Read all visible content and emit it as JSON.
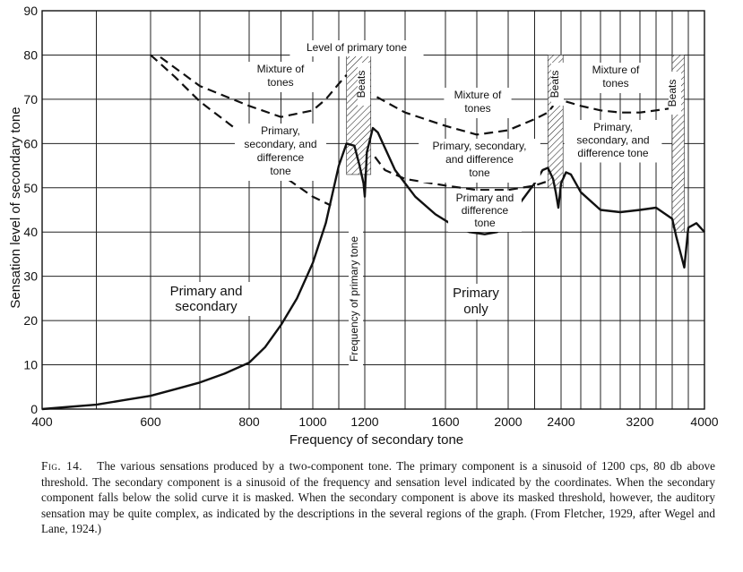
{
  "chart_data": {
    "type": "line",
    "title": "",
    "xlabel": "Frequency of secondary tone",
    "ylabel": "Sensation level of secondary tone",
    "xlim": [
      400,
      4000
    ],
    "ylim": [
      0,
      90
    ],
    "x_ticks": [
      {
        "value": 400,
        "label": "400"
      },
      {
        "value": 600,
        "label": "600"
      },
      {
        "value": 800,
        "label": "800"
      },
      {
        "value": 1000,
        "label": "1000"
      },
      {
        "value": 1200,
        "label": "1200"
      },
      {
        "value": 1600,
        "label": "1600"
      },
      {
        "value": 2000,
        "label": "2000"
      },
      {
        "value": 2400,
        "label": "2400"
      },
      {
        "value": 3200,
        "label": "3200"
      },
      {
        "value": 4000,
        "label": "4000"
      }
    ],
    "y_ticks": [
      0,
      10,
      20,
      30,
      40,
      50,
      60,
      70,
      80,
      90
    ],
    "x_gridlines": [
      400,
      500,
      600,
      700,
      800,
      900,
      1000,
      1100,
      1200,
      1400,
      1600,
      1800,
      2000,
      2200,
      2400,
      2600,
      2800,
      3000,
      3200,
      3400,
      3600,
      3800,
      4000
    ],
    "grid": true,
    "series": [
      {
        "style": "solid",
        "x": [
          400,
          450,
          500,
          550,
          600,
          650,
          700,
          750,
          800,
          850,
          900,
          950,
          1000,
          1050,
          1100,
          1130,
          1160,
          1180,
          1195,
          1200,
          1210,
          1240,
          1265,
          1300,
          1350,
          1450,
          1550,
          1650,
          1750,
          1850,
          1930,
          2000,
          2100,
          2200,
          2260,
          2300,
          2340,
          2360,
          2380,
          2400,
          2450,
          2500,
          2600,
          2800,
          3000,
          3200,
          3400,
          3600,
          3650,
          3700,
          3750,
          3800,
          3900,
          4000
        ],
        "y": [
          0,
          0.5,
          1,
          2,
          3,
          4.5,
          6,
          8,
          10.5,
          14,
          19,
          25,
          33,
          42,
          55,
          60,
          59.5,
          55,
          51,
          48,
          58,
          63.5,
          62.5,
          59,
          54,
          48,
          44,
          41.5,
          40,
          39.5,
          40,
          42.5,
          47,
          51,
          54,
          54.5,
          52,
          49,
          45.5,
          51,
          53.5,
          53,
          49,
          45,
          44.5,
          45,
          45.5,
          43,
          39,
          35.5,
          32,
          41,
          42,
          40
        ]
      },
      {
        "style": "dashed",
        "x": [
          620,
          700,
          800,
          900,
          1000,
          1050,
          1100,
          1130
        ],
        "y": [
          79.5,
          73,
          68.5,
          66,
          67.5,
          70,
          73.5,
          75.5
        ]
      },
      {
        "style": "dashed",
        "x": [
          1260,
          1400,
          1600,
          1800,
          2000,
          2200,
          2300,
          2340
        ],
        "y": [
          70.5,
          67,
          64,
          62,
          63,
          65.5,
          67,
          68.5
        ]
      },
      {
        "style": "dashed",
        "x": [
          2450,
          2600,
          2800,
          3000,
          3200,
          3400,
          3600
        ],
        "y": [
          69.5,
          68.5,
          67.5,
          67,
          67,
          67.5,
          68
        ]
      },
      {
        "style": "dashed",
        "x": [
          600,
          650,
          700,
          800,
          900,
          1000,
          1070
        ],
        "y": [
          80,
          75,
          69.5,
          61,
          53,
          48,
          46
        ]
      },
      {
        "style": "dashed",
        "x": [
          1250,
          1300,
          1400,
          1600,
          1800,
          2000,
          2200,
          2300
        ],
        "y": [
          57,
          54,
          52,
          50.5,
          49.5,
          49.5,
          50.5,
          51.5
        ]
      }
    ],
    "hatched_regions": [
      {
        "x0": 1130,
        "x1": 1230,
        "y0": 53,
        "y1": 80,
        "label": "Beats"
      },
      {
        "x0": 2300,
        "x1": 2420,
        "y0": 50,
        "y1": 80,
        "label": "Beats"
      },
      {
        "x0": 3600,
        "x1": 3750,
        "y0": 40,
        "y1": 80,
        "label": "Beats"
      }
    ],
    "annotations": [
      {
        "text": "Level of primary tone"
      },
      {
        "lines": [
          "Mixture of",
          "tones"
        ]
      },
      {
        "lines": [
          "Primary,",
          "secondary, and",
          "difference",
          "tone"
        ]
      },
      {
        "lines": [
          "Mixture of",
          "tones"
        ]
      },
      {
        "lines": [
          "Primary, secondary,",
          "and difference",
          "tone"
        ]
      },
      {
        "lines": [
          "Primary and",
          "difference",
          "tone"
        ]
      },
      {
        "lines": [
          "Mixture of",
          "tones"
        ]
      },
      {
        "lines": [
          "Primary,",
          "secondary, and",
          "difference tone"
        ]
      },
      {
        "lines": [
          "Primary and",
          "secondary"
        ]
      },
      {
        "lines": [
          "Primary",
          "only"
        ]
      },
      {
        "text": "Frequency of primary tone"
      }
    ]
  },
  "caption": {
    "fig_label": "Fig. 14.",
    "text": "The various sensations produced by a two-component tone. The primary component is a sinusoid of 1200 cps, 80 db above threshold. The secondary component is a sinusoid of the frequency and sensation level indicated by the coordinates. When the secondary component falls below the solid curve it is masked. When the secondary component is above its masked threshold, however, the auditory sensation may be quite complex, as indicated by the descriptions in the several regions of the graph. (From Fletcher, 1929, after Wegel and Lane, 1924.)"
  }
}
